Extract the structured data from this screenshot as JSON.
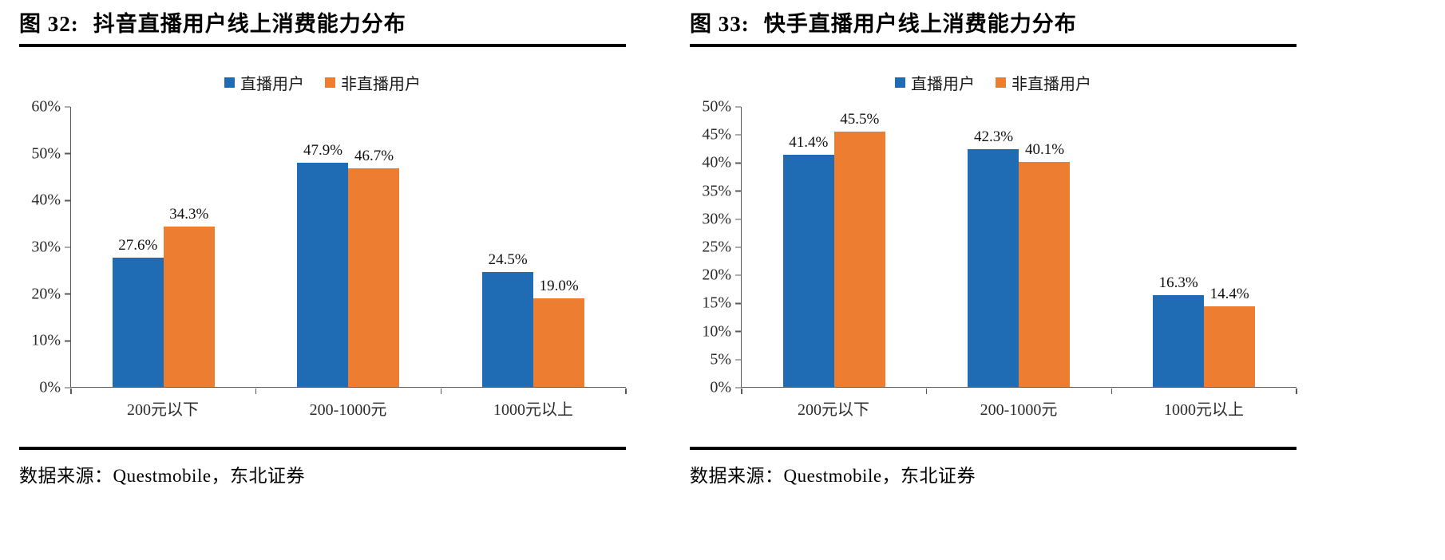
{
  "colors": {
    "series_colors": [
      "#1F6CB5",
      "#ED7D31"
    ],
    "axis": "#595959",
    "rule": "#000000",
    "text": "#000000"
  },
  "chart_data": [
    {
      "type": "bar",
      "figure_label": "图 32:",
      "title": "抖音直播用户线上消费能力分布",
      "categories": [
        "200元以下",
        "200-1000元",
        "1000元以上"
      ],
      "series": [
        {
          "name": "直播用户",
          "values": [
            27.6,
            47.9,
            24.5
          ]
        },
        {
          "name": "非直播用户",
          "values": [
            34.3,
            46.7,
            19.0
          ]
        }
      ],
      "data_labels": [
        [
          "27.6%",
          "47.9%",
          "24.5%"
        ],
        [
          "34.3%",
          "46.7%",
          "19.0%"
        ]
      ],
      "xlabel": "",
      "ylabel": "",
      "ylim": [
        0,
        60
      ],
      "ytick_step": 10,
      "ytick_labels": [
        "0%",
        "10%",
        "20%",
        "30%",
        "40%",
        "50%",
        "60%"
      ],
      "grid": false,
      "legend_position": "top-center",
      "source": "数据来源：Questmobile，东北证券"
    },
    {
      "type": "bar",
      "figure_label": "图 33:",
      "title": "快手直播用户线上消费能力分布",
      "categories": [
        "200元以下",
        "200-1000元",
        "1000元以上"
      ],
      "series": [
        {
          "name": "直播用户",
          "values": [
            41.4,
            42.3,
            16.3
          ]
        },
        {
          "name": "非直播用户",
          "values": [
            45.5,
            40.1,
            14.4
          ]
        }
      ],
      "data_labels": [
        [
          "41.4%",
          "42.3%",
          "16.3%"
        ],
        [
          "45.5%",
          "40.1%",
          "14.4%"
        ]
      ],
      "xlabel": "",
      "ylabel": "",
      "ylim": [
        0,
        50
      ],
      "ytick_step": 5,
      "ytick_labels": [
        "0%",
        "5%",
        "10%",
        "15%",
        "20%",
        "25%",
        "30%",
        "35%",
        "40%",
        "45%",
        "50%"
      ],
      "grid": false,
      "legend_position": "top-center",
      "source": "数据来源：Questmobile，东北证券"
    }
  ]
}
